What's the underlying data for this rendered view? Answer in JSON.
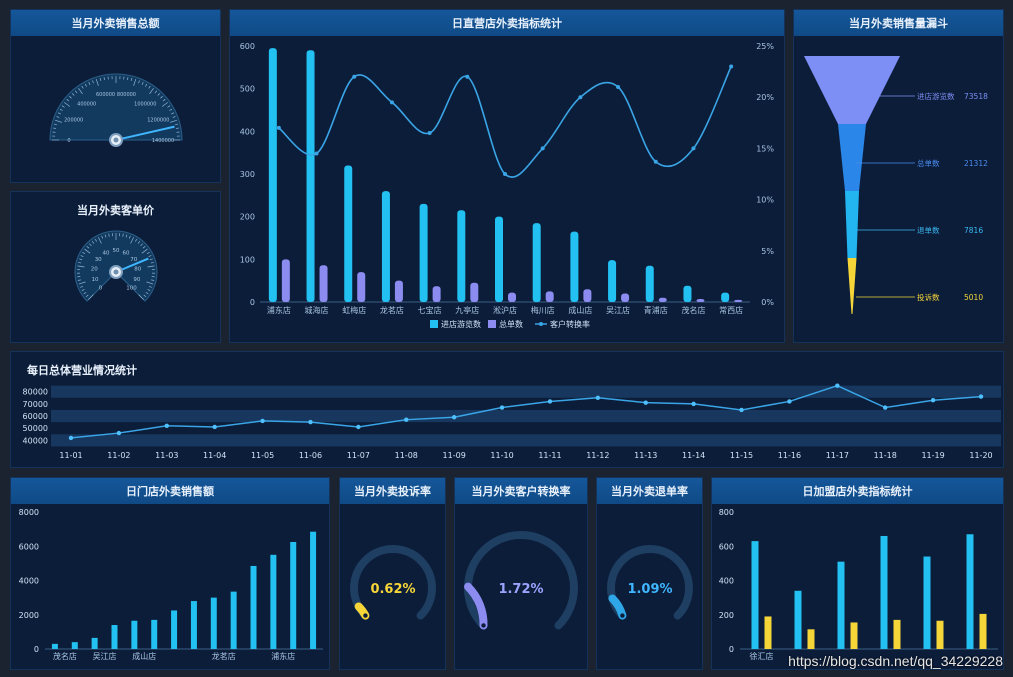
{
  "colors": {
    "bar_blue": "#22c1f2",
    "bar_purple": "#8c8cf0",
    "line": "#3aa5e6",
    "yellow": "#f5d538",
    "funnel_top": "#7d8ff5",
    "funnel_mid": "#2a86e8",
    "funnel_low": "#22b5f0"
  },
  "panels": {
    "total_sales": {
      "title": "当月外卖销售总额"
    },
    "unit_price": {
      "title": "当月外卖客单价"
    },
    "main": {
      "title": "日直营店外卖指标统计"
    },
    "funnel": {
      "title": "当月外卖销售量漏斗"
    },
    "daily": {
      "title": "每日总体营业情况统计"
    },
    "store_sales": {
      "title": "日门店外卖销售额"
    },
    "complaint": {
      "title": "当月外卖投诉率"
    },
    "conversion": {
      "title": "当月外卖客户转换率"
    },
    "refund": {
      "title": "当月外卖退单率"
    },
    "franchise": {
      "title": "日加盟店外卖指标统计"
    }
  },
  "gauge_total": {
    "ticks": [
      "0",
      "200000",
      "400000",
      "600000",
      "800000",
      "1000000",
      "1200000",
      "1400000"
    ],
    "value": 1300000,
    "max": 1400000
  },
  "gauge_price": {
    "ticks": [
      "0",
      "10",
      "20",
      "30",
      "40",
      "50",
      "60",
      "70",
      "80",
      "90",
      "100"
    ],
    "value": 75,
    "max": 100
  },
  "chart_data": [
    {
      "type": "bar",
      "name": "direct-stores",
      "title": "日直营店外卖指标统计",
      "categories": [
        "浦东店",
        "城海店",
        "虹梅店",
        "龙茗店",
        "七宝店",
        "九亭店",
        "淞沪店",
        "梅川店",
        "成山店",
        "吴江店",
        "青浦店",
        "茂名店",
        "常西店"
      ],
      "series": [
        {
          "name": "进店游览数",
          "axis": "left",
          "values": [
            595,
            590,
            320,
            260,
            230,
            215,
            200,
            185,
            165,
            98,
            85,
            38,
            22
          ]
        },
        {
          "name": "总单数",
          "axis": "left",
          "values": [
            100,
            86,
            70,
            50,
            37,
            45,
            22,
            25,
            30,
            20,
            10,
            7,
            5
          ]
        },
        {
          "name": "客户转换率",
          "axis": "right",
          "type": "line",
          "values": [
            17,
            14.5,
            22,
            19.5,
            16.5,
            22,
            12.5,
            15,
            20,
            21,
            13.7,
            15,
            23
          ]
        }
      ],
      "yticks_left": [
        "0",
        "100",
        "200",
        "300",
        "400",
        "500",
        "600"
      ],
      "yticks_right": [
        "0%",
        "5%",
        "10%",
        "15%",
        "20%",
        "25%"
      ],
      "ylim": [
        0,
        600
      ],
      "ylim_right": [
        0,
        25
      ]
    },
    {
      "type": "funnel",
      "name": "sales-funnel",
      "title": "当月外卖销售量漏斗",
      "stages": [
        {
          "label": "进店游览数",
          "value": "73518"
        },
        {
          "label": "总单数",
          "value": "21312"
        },
        {
          "label": "退单数",
          "value": "7816"
        },
        {
          "label": "投诉数",
          "value": "5010"
        }
      ]
    },
    {
      "type": "line",
      "name": "daily-overall",
      "title": "每日总体营业情况统计",
      "categories": [
        "11-01",
        "11-02",
        "11-03",
        "11-04",
        "11-05",
        "11-06",
        "11-07",
        "11-08",
        "11-09",
        "11-10",
        "11-11",
        "11-12",
        "11-13",
        "11-14",
        "11-15",
        "11-16",
        "11-17",
        "11-18",
        "11-19",
        "11-20"
      ],
      "values": [
        42000,
        46000,
        52000,
        51000,
        56000,
        55000,
        51000,
        57000,
        59000,
        67000,
        72000,
        75000,
        71000,
        70000,
        65000,
        72000,
        85000,
        67000,
        73000,
        76000
      ],
      "yticks": [
        "40000",
        "50000",
        "60000",
        "70000",
        "80000"
      ],
      "ylim": [
        37000,
        88000
      ]
    },
    {
      "type": "bar",
      "name": "store-sales",
      "title": "日门店外卖销售额",
      "categories": [
        "茂名店",
        "",
        "吴江店",
        "",
        "成山店",
        "",
        "",
        "",
        "龙茗店",
        "",
        "",
        "浦东店",
        "",
        ""
      ],
      "values": [
        300,
        400,
        650,
        1400,
        1650,
        1700,
        2250,
        2800,
        3000,
        3350,
        4850,
        5500,
        6250,
        6850
      ],
      "yticks": [
        "0",
        "2000",
        "4000",
        "6000",
        "8000"
      ],
      "ylim": [
        0,
        8000
      ]
    },
    {
      "type": "bar",
      "name": "franchise",
      "title": "日加盟店外卖指标统计",
      "categories": [
        "徐汇店",
        "",
        "",
        "",
        "",
        ""
      ],
      "series": [
        {
          "name": "进店游览数",
          "values": [
            630,
            340,
            510,
            660,
            540,
            670
          ]
        },
        {
          "name": "总单数",
          "values": [
            190,
            115,
            155,
            170,
            165,
            205
          ]
        }
      ],
      "yticks": [
        "0",
        "200",
        "400",
        "600",
        "800"
      ],
      "ylim": [
        0,
        800
      ]
    }
  ],
  "rings": {
    "complaint": {
      "text": "0.62%",
      "value": 0.62
    },
    "conversion": {
      "text": "1.72%",
      "value": 1.72
    },
    "refund": {
      "text": "1.09%",
      "value": 1.09
    }
  },
  "watermark": "https://blog.csdn.net/qq_34229228"
}
